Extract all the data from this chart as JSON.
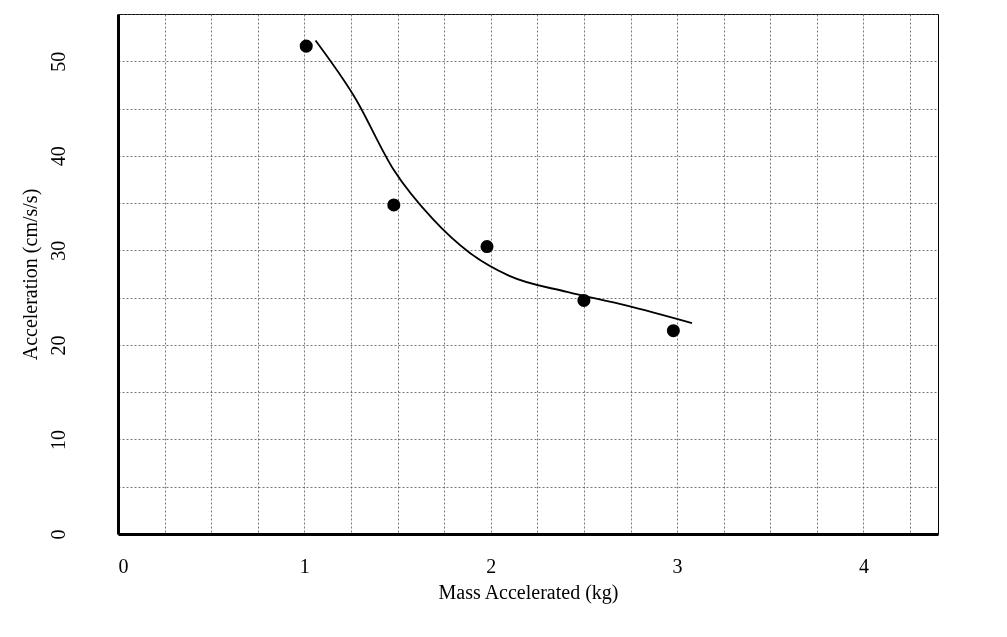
{
  "chart_data": {
    "type": "scatter",
    "xlabel": "Mass Accelerated (kg)",
    "ylabel": "Acceleration (cm/s/s)",
    "xlim": [
      0,
      4.4
    ],
    "ylim": [
      0,
      55
    ],
    "xticks": [
      0,
      {
        "value": 0.25,
        "label": null
      },
      {
        "value": 0.5,
        "label": null
      },
      {
        "value": 0.75,
        "label": null
      },
      1,
      {
        "value": 1.25,
        "label": null
      },
      {
        "value": 1.5,
        "label": null
      },
      {
        "value": 1.75,
        "label": null
      },
      2,
      {
        "value": 2.25,
        "label": null
      },
      {
        "value": 2.5,
        "label": null
      },
      {
        "value": 2.75,
        "label": null
      },
      3,
      {
        "value": 3.25,
        "label": null
      },
      {
        "value": 3.5,
        "label": null
      },
      {
        "value": 3.75,
        "label": null
      },
      4,
      {
        "value": 4.25,
        "label": null
      }
    ],
    "yticks": [
      0,
      {
        "value": 5,
        "label": null
      },
      10,
      {
        "value": 15,
        "label": null
      },
      20,
      {
        "value": 25,
        "label": null
      },
      30,
      {
        "value": 35,
        "label": null
      },
      40,
      {
        "value": 45,
        "label": null
      },
      50,
      {
        "value": 55,
        "label": null
      }
    ],
    "grid": true,
    "series": [
      {
        "color": "#000000",
        "marker": "circle",
        "x": [
          1.01,
          1.48,
          1.98,
          2.5,
          2.98
        ],
        "values": [
          51.6,
          34.8,
          30.4,
          24.7,
          21.5
        ]
      },
      {
        "type": "line",
        "color": "#000000",
        "x": [
          1.06,
          1.27,
          1.48,
          1.69,
          1.89,
          2.1,
          2.41,
          2.72,
          3.08
        ],
        "values": [
          52.2,
          46.2,
          38.5,
          33.3,
          29.7,
          27.3,
          25.6,
          24.2,
          22.3
        ]
      }
    ]
  }
}
